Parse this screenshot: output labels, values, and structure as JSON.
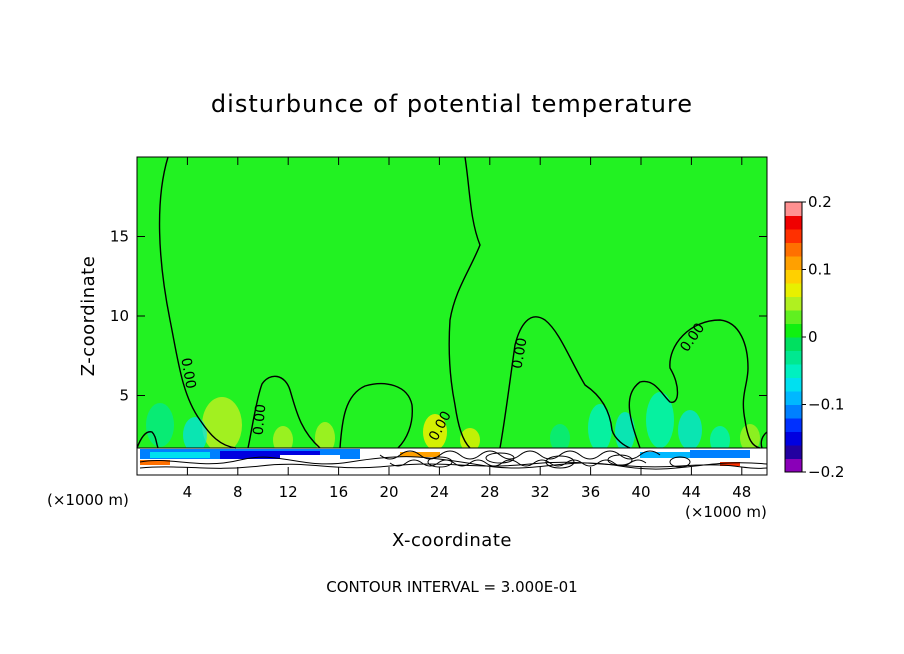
{
  "chart_data": {
    "type": "contour",
    "title": "disturbunce of potential temperature",
    "xlabel": "X-coordinate",
    "ylabel": "Z-coordinate",
    "x_unit": "(×1000 m)",
    "xlim": [
      0,
      50
    ],
    "ylim": [
      0,
      20
    ],
    "x_ticks": [
      4,
      8,
      12,
      16,
      20,
      24,
      28,
      32,
      36,
      40,
      44,
      48
    ],
    "y_ticks": [
      5,
      10,
      15
    ],
    "contour_label": "0.00",
    "contour_interval": "CONTOUR INTERVAL = 3.000E-01",
    "colorbar": {
      "range": [
        -0.2,
        0.2
      ],
      "tick_labels": [
        "0.2",
        "0.1",
        "0",
        "−0.1",
        "−0.2"
      ],
      "tick_values": [
        0.2,
        0.1,
        0,
        -0.1,
        -0.2
      ],
      "colors": [
        "#8a00b8",
        "#2200a0",
        "#0000e0",
        "#0030ff",
        "#0080ff",
        "#00b8ff",
        "#00e0f0",
        "#00f0c0",
        "#00e890",
        "#00e060",
        "#10f010",
        "#60f020",
        "#b0f020",
        "#e8f000",
        "#ffd000",
        "#ffa000",
        "#ff7000",
        "#ff3000",
        "#f00000",
        "#ff9090"
      ]
    },
    "background_color": "#22f222"
  }
}
